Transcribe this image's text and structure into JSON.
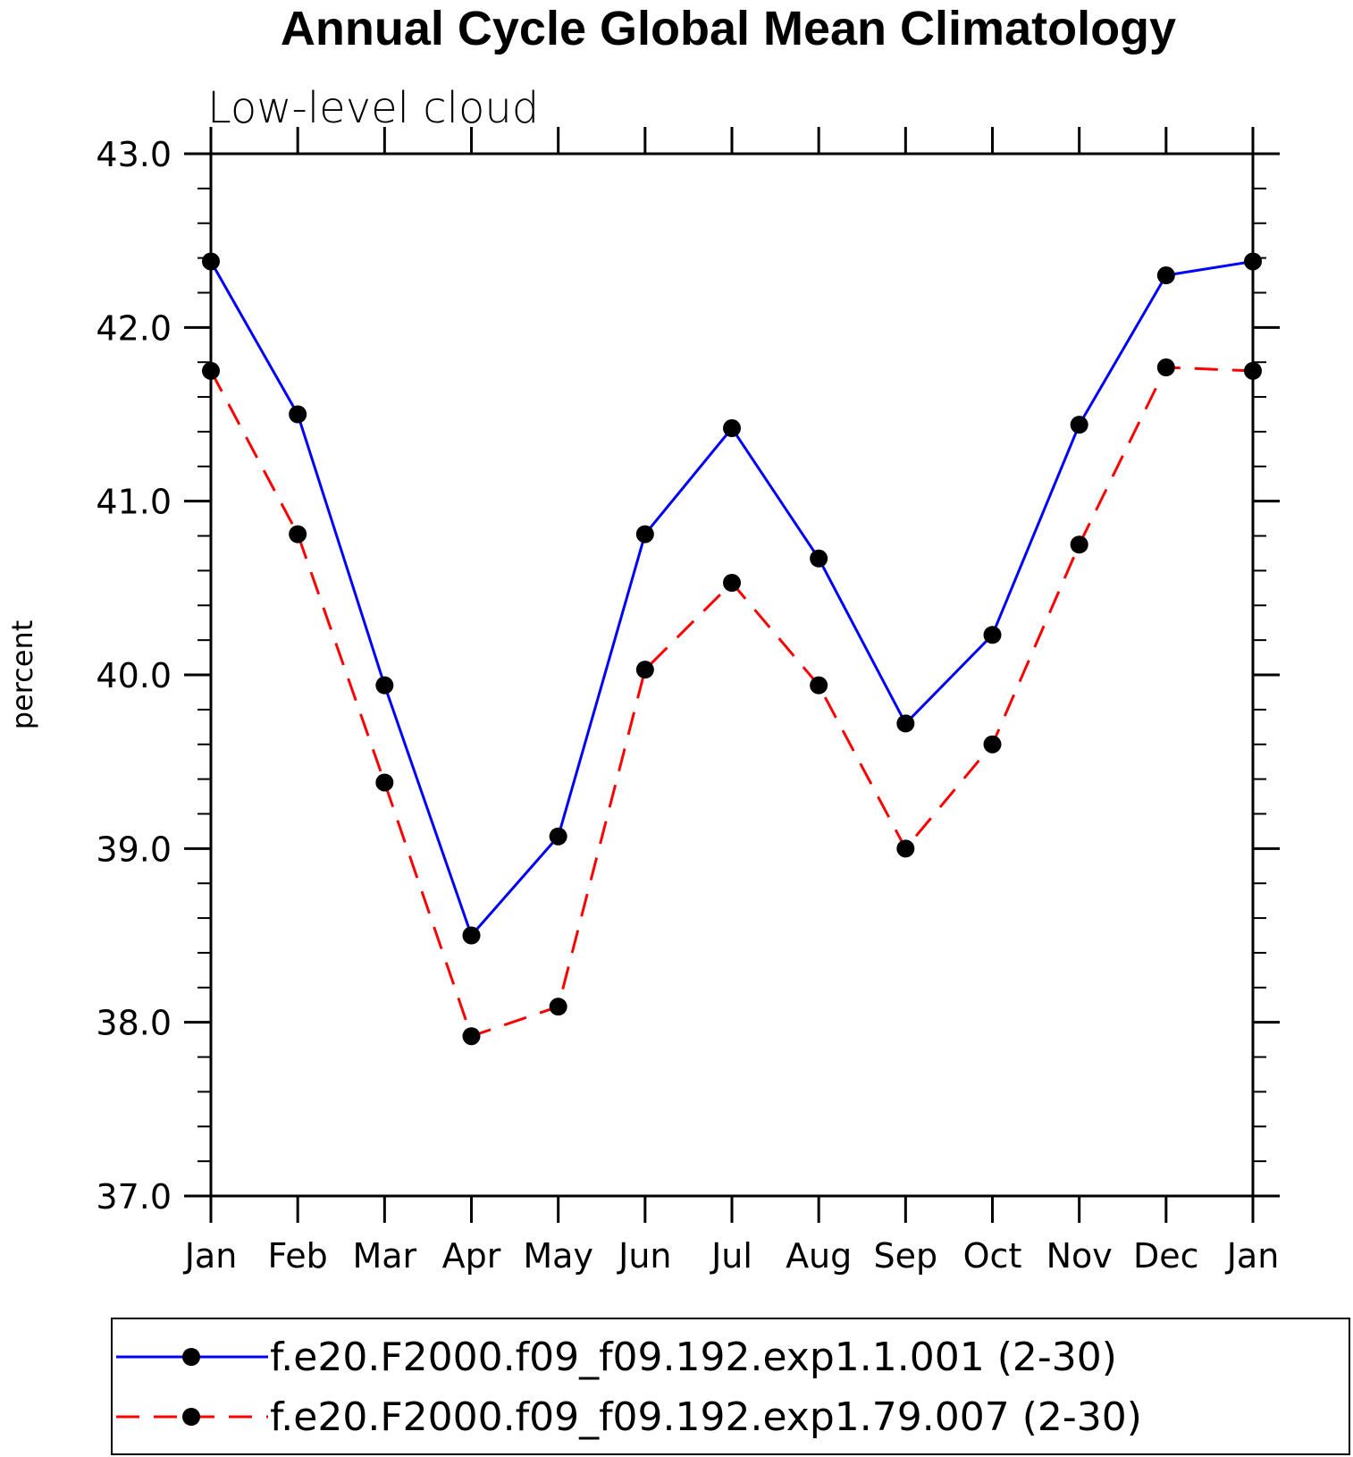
{
  "chart_data": {
    "type": "line",
    "title": "Annual Cycle Global Mean Climatology",
    "subtitle": "Low-level cloud",
    "ylabel": "percent",
    "xlabel": "",
    "categories": [
      "Jan",
      "Feb",
      "Mar",
      "Apr",
      "May",
      "Jun",
      "Jul",
      "Aug",
      "Sep",
      "Oct",
      "Nov",
      "Dec",
      "Jan"
    ],
    "ylim": [
      37.0,
      43.0
    ],
    "yticks": [
      "37.0",
      "38.0",
      "39.0",
      "40.0",
      "41.0",
      "42.0",
      "43.0"
    ],
    "grid": false,
    "legend_position": "bottom",
    "series": [
      {
        "name": "f.e20.F2000.f09_f09.192.exp1.1.001 (2-30)",
        "color": "#0000ff",
        "line_style": "solid",
        "marker": "filled-circle",
        "values": [
          42.38,
          41.5,
          39.94,
          38.5,
          39.07,
          40.81,
          41.42,
          40.67,
          39.72,
          40.23,
          41.44,
          42.3,
          42.38
        ]
      },
      {
        "name": "f.e20.F2000.f09_f09.192.exp1.79.007 (2-30)",
        "color": "#ff0000",
        "line_style": "dashed",
        "marker": "filled-circle",
        "values": [
          41.75,
          40.81,
          39.38,
          37.92,
          38.09,
          40.03,
          40.53,
          39.94,
          39.0,
          39.6,
          40.75,
          41.77,
          41.75
        ]
      }
    ]
  }
}
